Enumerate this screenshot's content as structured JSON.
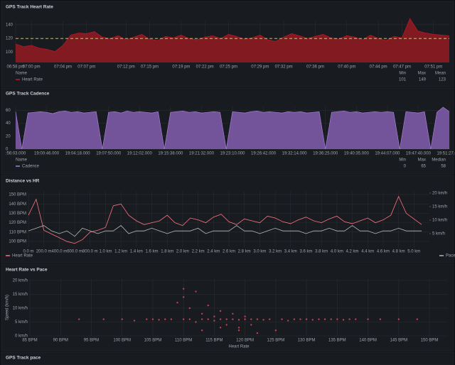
{
  "chart_data": [
    {
      "type": "area",
      "title": "GPS Track Heart Rate",
      "ylim": [
        85,
        145
      ],
      "yticks": [
        100,
        120,
        140
      ],
      "xlim": [
        0,
        55
      ],
      "grid": true,
      "xticks": [
        {
          "value": 0,
          "label": "06:58 pm"
        },
        {
          "value": 2,
          "label": "07:00 pm"
        },
        {
          "value": 6,
          "label": "07:04 pm"
        },
        {
          "value": 9,
          "label": "07:07 pm"
        },
        {
          "value": 14,
          "label": "07:12 pm"
        },
        {
          "value": 17,
          "label": "07:15 pm"
        },
        {
          "value": 21,
          "label": "07:19 pm"
        },
        {
          "value": 24,
          "label": "07:22 pm"
        },
        {
          "value": 27,
          "label": "07:25 pm"
        },
        {
          "value": 31,
          "label": "07:29 pm"
        },
        {
          "value": 34,
          "label": "07:32 pm"
        },
        {
          "value": 38,
          "label": "07:36 pm"
        },
        {
          "value": 42,
          "label": "07:40 pm"
        },
        {
          "value": 46,
          "label": "07:44 pm"
        },
        {
          "value": 49,
          "label": "07:47 pm"
        },
        {
          "value": 53,
          "label": "07:51 pm"
        }
      ],
      "threshold": 120,
      "threshold_color": "#e0d890",
      "stats_headers": [
        "Name",
        "Min",
        "Max",
        "Mean"
      ],
      "series": [
        {
          "name": "Heart Rate",
          "color": "#c4162a",
          "fill": "#8e1b22",
          "stats": [
            101,
            149,
            123
          ],
          "values": [
            112,
            108,
            110,
            106,
            104,
            101,
            110,
            125,
            128,
            127,
            130,
            122,
            120,
            124,
            118,
            122,
            126,
            119,
            117,
            123,
            121,
            125,
            120,
            118,
            122,
            124,
            120,
            126,
            123,
            119,
            121,
            125,
            118,
            116,
            122,
            127,
            124,
            120,
            123,
            126,
            121,
            119,
            124,
            122,
            118,
            125,
            120,
            117,
            123,
            121,
            149,
            131,
            128,
            126,
            125,
            124
          ]
        }
      ]
    },
    {
      "type": "area",
      "title": "GPS Track Cadence",
      "ylim": [
        0,
        66
      ],
      "yticks": [
        0,
        20,
        40,
        60
      ],
      "xlim": [
        0,
        70
      ],
      "grid": true,
      "xticks": [
        {
          "value": 0,
          "label": ":56:03.000"
        },
        {
          "value": 5,
          "label": "19:00:46.000"
        },
        {
          "value": 10,
          "label": "19:04:18.000"
        },
        {
          "value": 15,
          "label": "19:07:50.000"
        },
        {
          "value": 20,
          "label": "19:12:02.000"
        },
        {
          "value": 25,
          "label": "19:15:38.000"
        },
        {
          "value": 30,
          "label": "19:21:32.000"
        },
        {
          "value": 35,
          "label": "19:23:10.000"
        },
        {
          "value": 40,
          "label": "19:26:42.000"
        },
        {
          "value": 45,
          "label": "19:32:14.000"
        },
        {
          "value": 50,
          "label": "19:36:25.000"
        },
        {
          "value": 55,
          "label": "19:40:35.000"
        },
        {
          "value": 60,
          "label": "19:44:07.000"
        },
        {
          "value": 65,
          "label": "19:47:40.000"
        },
        {
          "value": 70,
          "label": "19:51:27.000"
        }
      ],
      "stats_headers": [
        "Name",
        "Min",
        "Max",
        "Median"
      ],
      "series": [
        {
          "name": "Cadence",
          "color": "#a77fd6",
          "fill": "#7d5aa6",
          "stats": [
            0,
            65,
            58
          ],
          "values": [
            58,
            0,
            56,
            57,
            58,
            57,
            55,
            58,
            59,
            57,
            58,
            56,
            57,
            58,
            0,
            57,
            58,
            56,
            59,
            57,
            58,
            57,
            56,
            58,
            0,
            57,
            58,
            59,
            57,
            58,
            56,
            57,
            58,
            57,
            0,
            58,
            57,
            56,
            58,
            59,
            57,
            58,
            57,
            56,
            58,
            57,
            58,
            56,
            57,
            58,
            0,
            57,
            58,
            59,
            57,
            58,
            56,
            57,
            58,
            57,
            58,
            57,
            0,
            58,
            57,
            56,
            58,
            0,
            57,
            65,
            58
          ]
        }
      ]
    },
    {
      "type": "line",
      "title": "Distance vs HR",
      "grid": true,
      "xlim": [
        0,
        5200
      ],
      "ylim": [
        94,
        153
      ],
      "y2lim": [
        0,
        20.5
      ],
      "yticks": [
        {
          "value": 100,
          "label": "100 BPM"
        },
        {
          "value": 110,
          "label": "110 BPM"
        },
        {
          "value": 120,
          "label": "120 BPM"
        },
        {
          "value": 130,
          "label": "130 BPM"
        },
        {
          "value": 140,
          "label": "140 BPM"
        },
        {
          "value": 150,
          "label": "150 BPM"
        }
      ],
      "y2ticks": [
        {
          "value": 5,
          "label": "5 km/h"
        },
        {
          "value": 10,
          "label": "10 km/h"
        },
        {
          "value": 15,
          "label": "15 km/h"
        },
        {
          "value": 20,
          "label": "20 km/h"
        }
      ],
      "xticks": [
        {
          "value": 0,
          "label": "0.0 m"
        },
        {
          "value": 200,
          "label": "200.0 m"
        },
        {
          "value": 400,
          "label": "400.0 m"
        },
        {
          "value": 600,
          "label": "600.0 m"
        },
        {
          "value": 800,
          "label": "800.0 m"
        },
        {
          "value": 1000,
          "label": "1.0 km"
        },
        {
          "value": 1200,
          "label": "1.2 km"
        },
        {
          "value": 1400,
          "label": "1.4 km"
        },
        {
          "value": 1600,
          "label": "1.6 km"
        },
        {
          "value": 1800,
          "label": "1.8 km"
        },
        {
          "value": 2000,
          "label": "2.0 km"
        },
        {
          "value": 2200,
          "label": "2.2 km"
        },
        {
          "value": 2400,
          "label": "2.4 km"
        },
        {
          "value": 2600,
          "label": "2.6 km"
        },
        {
          "value": 2800,
          "label": "2.8 km"
        },
        {
          "value": 3000,
          "label": "3.0 km"
        },
        {
          "value": 3200,
          "label": "3.2 km"
        },
        {
          "value": 3400,
          "label": "3.4 km"
        },
        {
          "value": 3600,
          "label": "3.6 km"
        },
        {
          "value": 3800,
          "label": "3.8 km"
        },
        {
          "value": 4000,
          "label": "4.0 km"
        },
        {
          "value": 4200,
          "label": "4.2 km"
        },
        {
          "value": 4400,
          "label": "4.4 km"
        },
        {
          "value": 4600,
          "label": "4.6 km"
        },
        {
          "value": 4800,
          "label": "4.8 km"
        },
        {
          "value": 5000,
          "label": "5.0 km"
        }
      ],
      "x": [
        0,
        100,
        200,
        300,
        400,
        500,
        600,
        700,
        800,
        900,
        1000,
        1100,
        1200,
        1300,
        1400,
        1500,
        1600,
        1700,
        1800,
        1900,
        2000,
        2100,
        2200,
        2300,
        2400,
        2500,
        2600,
        2700,
        2800,
        2900,
        3000,
        3100,
        3200,
        3300,
        3400,
        3500,
        3600,
        3700,
        3800,
        3900,
        4000,
        4100,
        4200,
        4300,
        4400,
        4500,
        4600,
        4700,
        4800,
        4900,
        5000,
        5100
      ],
      "series": [
        {
          "name": "Heart Rate",
          "color": "#ff7383",
          "values": [
            128,
            145,
            112,
            108,
            104,
            100,
            98,
            102,
            110,
            112,
            115,
            138,
            140,
            128,
            122,
            118,
            120,
            122,
            128,
            120,
            117,
            125,
            123,
            120,
            126,
            129,
            121,
            118,
            124,
            122,
            120,
            127,
            125,
            121,
            119,
            123,
            126,
            122,
            120,
            124,
            127,
            121,
            119,
            122,
            125,
            120,
            123,
            128,
            148,
            130,
            124,
            118
          ]
        },
        {
          "name": "Pace",
          "color": "#b8b8b8",
          "axis": "y2",
          "values": [
            6,
            7,
            8,
            6,
            5,
            6,
            4,
            7,
            6,
            5,
            6,
            6,
            8,
            5,
            6,
            6,
            7,
            6,
            5,
            6,
            6,
            6,
            7,
            5,
            6,
            6,
            6,
            8,
            6,
            6,
            5,
            6,
            7,
            6,
            6,
            6,
            5,
            6,
            6,
            7,
            6,
            6,
            8,
            6,
            6,
            5,
            6,
            6,
            7,
            6,
            6,
            6
          ]
        }
      ]
    },
    {
      "type": "scatter",
      "title": "Heart Rate vs Pace",
      "x_label": "Heart Rate",
      "y_label": "Speed (km/h)",
      "grid": true,
      "xlim": [
        85,
        153
      ],
      "ylim": [
        0,
        20.5
      ],
      "xticks": [
        {
          "value": 85,
          "label": "85 BPM"
        },
        {
          "value": 90,
          "label": "90 BPM"
        },
        {
          "value": 95,
          "label": "95 BPM"
        },
        {
          "value": 100,
          "label": "100 BPM"
        },
        {
          "value": 105,
          "label": "105 BPM"
        },
        {
          "value": 110,
          "label": "110 BPM"
        },
        {
          "value": 115,
          "label": "115 BPM"
        },
        {
          "value": 120,
          "label": "120 BPM"
        },
        {
          "value": 125,
          "label": "125 BPM"
        },
        {
          "value": 130,
          "label": "130 BPM"
        },
        {
          "value": 135,
          "label": "135 BPM"
        },
        {
          "value": 140,
          "label": "140 BPM"
        },
        {
          "value": 145,
          "label": "145 BPM"
        },
        {
          "value": 150,
          "label": "150 BPM"
        }
      ],
      "yticks": [
        {
          "value": 0,
          "label": "0 km/h"
        },
        {
          "value": 5,
          "label": "5 km/h"
        },
        {
          "value": 10,
          "label": "10 km/h"
        },
        {
          "value": 15,
          "label": "15 km/h"
        },
        {
          "value": 20,
          "label": "20 km/h"
        }
      ],
      "series": [
        {
          "color": "#f2495c",
          "x": [
            93,
            97,
            100,
            102,
            104,
            105,
            106,
            107,
            108,
            109,
            110,
            110,
            111,
            111,
            112,
            112,
            113,
            113,
            114,
            114,
            115,
            115,
            116,
            116,
            117,
            117,
            118,
            118,
            119,
            119,
            120,
            120,
            121,
            121,
            122,
            123,
            124,
            125,
            126,
            127,
            128,
            129,
            130,
            131,
            132,
            133,
            134,
            135,
            136,
            137,
            138,
            140,
            142,
            145,
            148,
            110,
            113,
            116,
            119,
            122
          ],
          "values": [
            6,
            6,
            6,
            5.5,
            6,
            6,
            5.8,
            6,
            6,
            12,
            6,
            14,
            6,
            10,
            5,
            16,
            6,
            8,
            6,
            11,
            5.5,
            7,
            6,
            9,
            6,
            4,
            6,
            8,
            5.8,
            3,
            6,
            7,
            6,
            4,
            6,
            5.8,
            6,
            2,
            6,
            5.5,
            6,
            6,
            6,
            5.8,
            6,
            6,
            6,
            6,
            5.8,
            6,
            6,
            6,
            6,
            6,
            6,
            17,
            2,
            3,
            2,
            1
          ]
        }
      ]
    },
    {
      "type": "line",
      "title": "GPS Track pace"
    }
  ]
}
